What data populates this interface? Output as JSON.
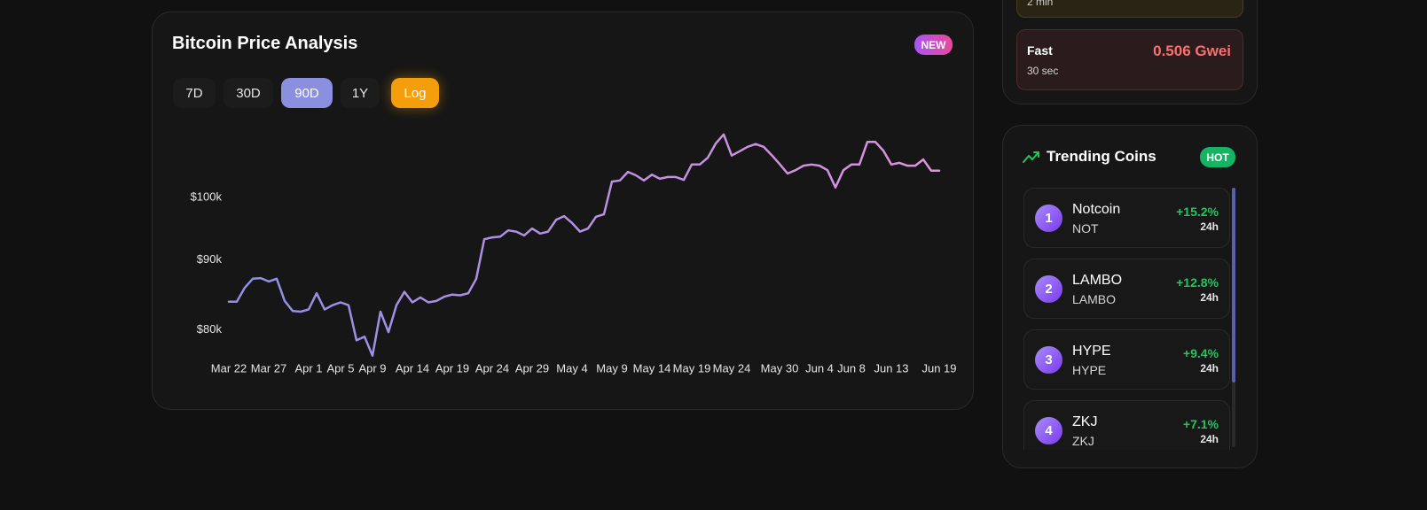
{
  "chart_data": {
    "type": "line",
    "title": "Bitcoin Price Analysis",
    "badge": "NEW",
    "controls": [
      "7D",
      "30D",
      "90D",
      "1Y",
      "Log"
    ],
    "categories": [
      "Mar 22",
      null,
      null,
      null,
      null,
      "Mar 27",
      null,
      null,
      null,
      null,
      "Apr 1",
      null,
      null,
      null,
      "Apr 5",
      null,
      null,
      null,
      "Apr 9",
      null,
      null,
      null,
      null,
      "Apr 14",
      null,
      null,
      null,
      null,
      "Apr 19",
      null,
      null,
      null,
      null,
      "Apr 24",
      null,
      null,
      null,
      null,
      "Apr 29",
      null,
      null,
      null,
      null,
      "May 4",
      null,
      null,
      null,
      null,
      "May 9",
      null,
      null,
      null,
      null,
      "May 14",
      null,
      null,
      null,
      null,
      "May 19",
      null,
      null,
      null,
      null,
      "May 24",
      null,
      null,
      null,
      null,
      null,
      "May 30",
      null,
      null,
      null,
      null,
      "Jun 4",
      null,
      null,
      null,
      "Jun 8",
      null,
      null,
      null,
      null,
      "Jun 13",
      null,
      null,
      null,
      null,
      null,
      "Jun 19"
    ],
    "values": [
      83900,
      83900,
      85900,
      87200,
      87300,
      86800,
      87200,
      84000,
      82600,
      82500,
      82800,
      85100,
      82800,
      83400,
      83800,
      83400,
      78600,
      79100,
      76600,
      82500,
      79700,
      83400,
      85300,
      83800,
      84500,
      83800,
      84000,
      84600,
      84900,
      84800,
      85100,
      87200,
      93200,
      93500,
      93600,
      94600,
      94400,
      93800,
      94900,
      94100,
      94400,
      96300,
      96900,
      95800,
      94400,
      94900,
      96800,
      97200,
      102700,
      102900,
      104400,
      103800,
      102900,
      103900,
      103200,
      103500,
      103500,
      103000,
      105700,
      105700,
      106900,
      109500,
      111200,
      107300,
      108100,
      108900,
      109400,
      108900,
      107400,
      105800,
      104100,
      104700,
      105500,
      105700,
      105500,
      104700,
      101700,
      104700,
      105700,
      105700,
      109800,
      109800,
      108200,
      105700,
      106000,
      105500,
      105500,
      106600,
      104600,
      104600
    ],
    "colors": [
      "#8f8fe6",
      "#e291e0"
    ],
    "log_scale": true,
    "grid": false,
    "ylim": [
      76000,
      112000
    ],
    "yticks": [
      {
        "value": 80000,
        "label": "$80k"
      },
      {
        "value": 90000,
        "label": "$90k"
      },
      {
        "value": 100000,
        "label": "$100k"
      }
    ]
  },
  "gas": {
    "partial_time": "2 min",
    "fast": {
      "label": "Fast",
      "price": "0.506 Gwei",
      "time": "30 sec"
    }
  },
  "trending": {
    "title": "Trending Coins",
    "badge": "HOT",
    "coins": [
      {
        "rank": 1,
        "name": "Notcoin",
        "symbol": "NOT",
        "change": "+15.2%",
        "period": "24h"
      },
      {
        "rank": 2,
        "name": "LAMBO",
        "symbol": "LAMBO",
        "change": "+12.8%",
        "period": "24h"
      },
      {
        "rank": 3,
        "name": "HYPE",
        "symbol": "HYPE",
        "change": "+9.4%",
        "period": "24h"
      },
      {
        "rank": 4,
        "name": "ZKJ",
        "symbol": "ZKJ",
        "change": "+7.1%",
        "period": "24h"
      }
    ]
  }
}
